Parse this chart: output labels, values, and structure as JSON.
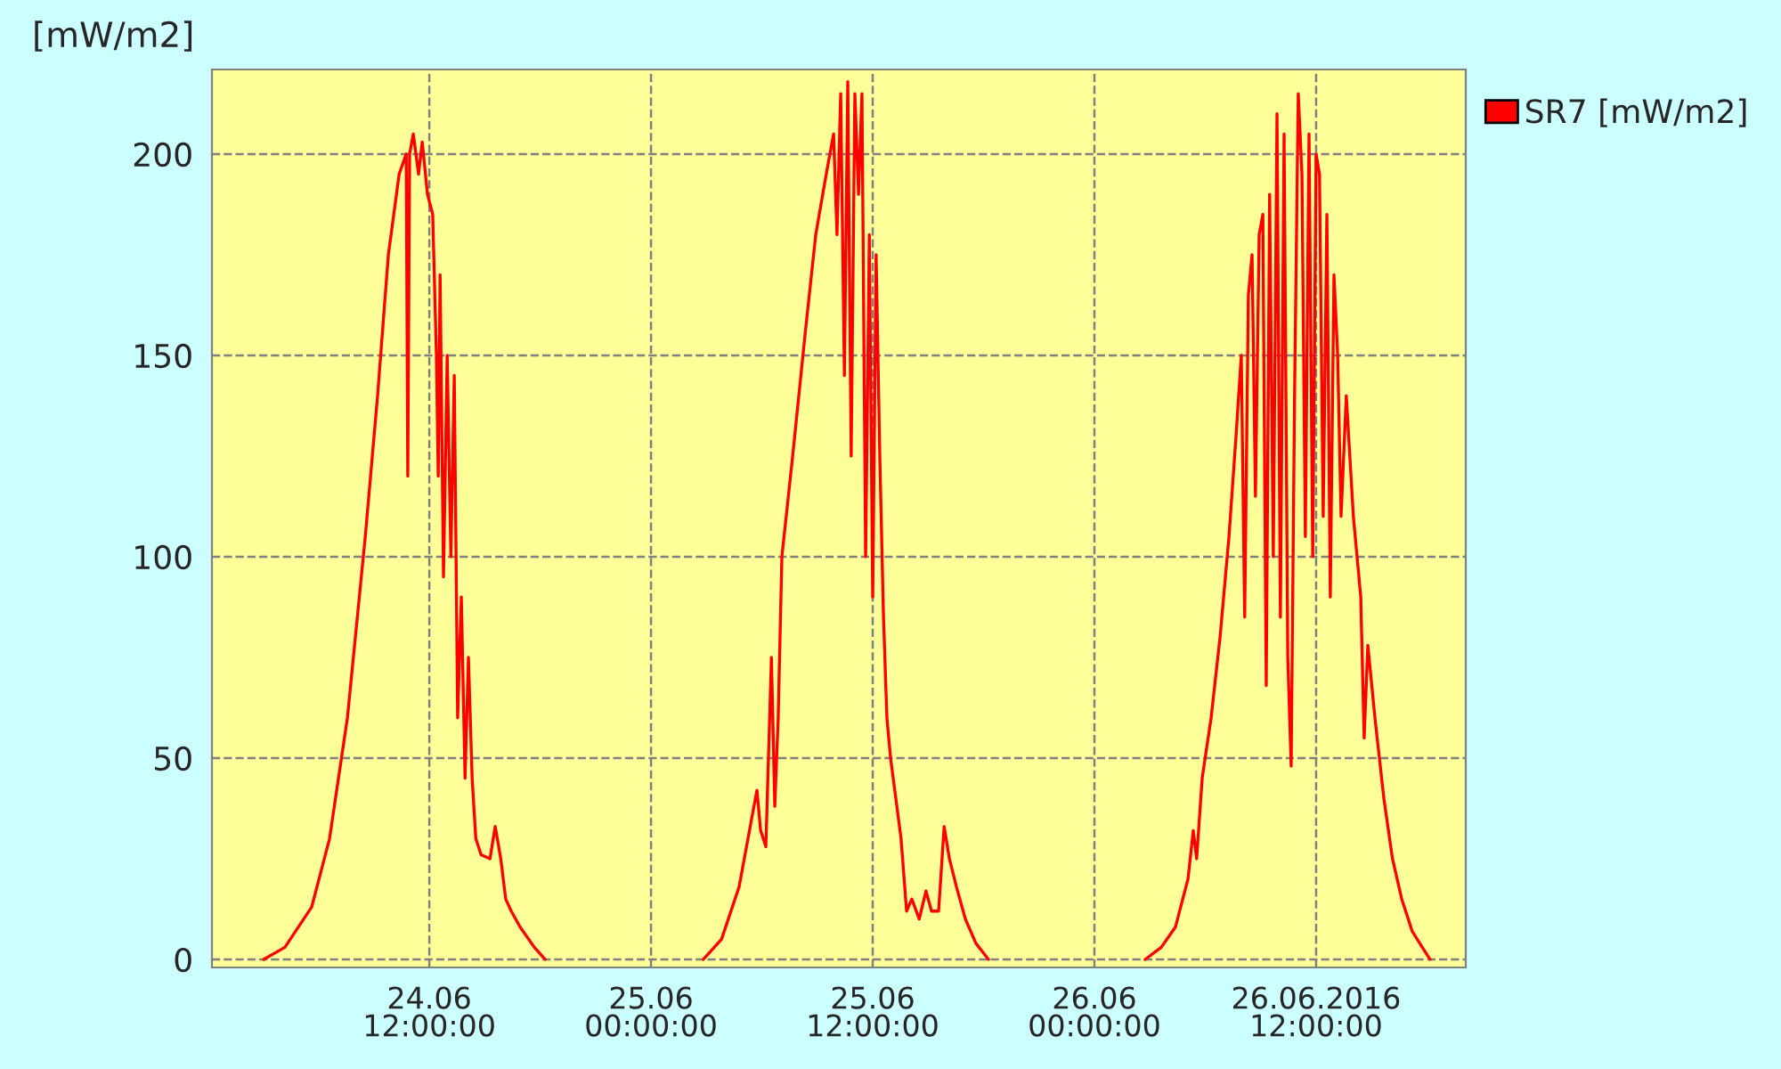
{
  "chart_data": {
    "type": "line",
    "ylabel": "[mW/m2]",
    "x": [
      "2016-06-24T03:02",
      "2016-06-24T04:11",
      "2016-06-24T05:38",
      "2016-06-24T06:36",
      "2016-06-24T07:34",
      "2016-06-24T08:32",
      "2016-06-24T09:12",
      "2016-06-24T09:47",
      "2016-06-24T10:22",
      "2016-06-24T10:45",
      "2016-06-24T10:50",
      "2016-06-24T10:56",
      "2016-06-24T11:08",
      "2016-06-24T11:25",
      "2016-06-24T11:37",
      "2016-06-24T11:54",
      "2016-06-24T12:11",
      "2016-06-24T12:23",
      "2016-06-24T12:29",
      "2016-06-24T12:35",
      "2016-06-24T12:46",
      "2016-06-24T12:58",
      "2016-06-24T13:10",
      "2016-06-24T13:21",
      "2016-06-24T13:32",
      "2016-06-24T13:44",
      "2016-06-24T13:56",
      "2016-06-24T14:07",
      "2016-06-24T14:19",
      "2016-06-24T14:31",
      "2016-06-24T14:48",
      "2016-06-24T15:17",
      "2016-06-24T15:34",
      "2016-06-24T15:52",
      "2016-06-24T16:08",
      "2016-06-24T16:26",
      "2016-06-24T16:55",
      "2016-06-24T17:41",
      "2016-06-24T18:16",
      "2016-06-24T22:30",
      "2016-06-25T02:50",
      "2016-06-25T03:49",
      "2016-06-25T04:46",
      "2016-06-25T05:27",
      "2016-06-25T05:44",
      "2016-06-25T05:56",
      "2016-06-25T06:13",
      "2016-06-25T06:31",
      "2016-06-25T06:42",
      "2016-06-25T06:53",
      "2016-06-25T07:05",
      "2016-06-25T07:40",
      "2016-06-25T08:20",
      "2016-06-25T08:55",
      "2016-06-25T09:29",
      "2016-06-25T09:53",
      "2016-06-25T10:04",
      "2016-06-25T10:16",
      "2016-06-25T10:28",
      "2016-06-25T10:39",
      "2016-06-25T10:50",
      "2016-06-25T11:02",
      "2016-06-25T11:14",
      "2016-06-25T11:25",
      "2016-06-25T11:37",
      "2016-06-25T11:49",
      "2016-06-25T12:00",
      "2016-06-25T12:11",
      "2016-06-25T12:23",
      "2016-06-25T12:35",
      "2016-06-25T12:46",
      "2016-06-25T12:58",
      "2016-06-25T13:15",
      "2016-06-25T13:32",
      "2016-06-25T13:50",
      "2016-06-25T14:07",
      "2016-06-25T14:31",
      "2016-06-25T14:53",
      "2016-06-25T15:11",
      "2016-06-25T15:34",
      "2016-06-25T15:52",
      "2016-06-25T16:09",
      "2016-06-25T16:32",
      "2016-06-25T17:01",
      "2016-06-25T17:35",
      "2016-06-25T18:16",
      "2016-06-25T22:30",
      "2016-06-26T02:45",
      "2016-06-26T03:37",
      "2016-06-26T04:23",
      "2016-06-26T05:04",
      "2016-06-26T05:21",
      "2016-06-26T05:32",
      "2016-06-26T05:50",
      "2016-06-26T06:19",
      "2016-06-26T06:48",
      "2016-06-26T07:17",
      "2016-06-26T07:40",
      "2016-06-26T07:57",
      "2016-06-26T08:08",
      "2016-06-26T08:20",
      "2016-06-26T08:32",
      "2016-06-26T08:43",
      "2016-06-26T08:55",
      "2016-06-26T09:07",
      "2016-06-26T09:18",
      "2016-06-26T09:29",
      "2016-06-26T09:41",
      "2016-06-26T09:53",
      "2016-06-26T10:04",
      "2016-06-26T10:16",
      "2016-06-26T10:28",
      "2016-06-26T10:39",
      "2016-06-26T10:50",
      "2016-06-26T11:02",
      "2016-06-26T11:14",
      "2016-06-26T11:25",
      "2016-06-26T11:37",
      "2016-06-26T11:49",
      "2016-06-26T12:00",
      "2016-06-26T12:11",
      "2016-06-26T12:23",
      "2016-06-26T12:35",
      "2016-06-26T12:46",
      "2016-06-26T12:58",
      "2016-06-26T13:10",
      "2016-06-26T13:21",
      "2016-06-26T13:38",
      "2016-06-26T14:01",
      "2016-06-26T14:25",
      "2016-06-26T14:36",
      "2016-06-26T14:48",
      "2016-06-26T15:11",
      "2016-06-26T15:40",
      "2016-06-26T16:08",
      "2016-06-26T16:38",
      "2016-06-26T17:12",
      "2016-06-26T17:53",
      "2016-06-26T18:10"
    ],
    "series": [
      {
        "name": "SR7 [mW/m2]",
        "color": "#ff0000",
        "values": [
          0,
          3,
          13,
          30,
          60,
          105,
          140,
          175,
          195,
          200,
          120,
          200,
          205,
          195,
          203,
          190,
          185,
          150,
          120,
          170,
          95,
          150,
          100,
          145,
          60,
          90,
          45,
          75,
          45,
          30,
          26,
          25,
          33,
          25,
          15,
          12,
          8,
          3,
          0,
          null,
          0,
          5,
          18,
          35,
          42,
          32,
          28,
          75,
          38,
          60,
          100,
          125,
          155,
          180,
          195,
          205,
          180,
          215,
          145,
          218,
          125,
          215,
          190,
          215,
          100,
          180,
          90,
          175,
          125,
          85,
          60,
          50,
          40,
          30,
          12,
          15,
          10,
          17,
          12,
          12,
          33,
          25,
          18,
          10,
          4,
          0,
          null,
          0,
          3,
          8,
          20,
          32,
          25,
          45,
          60,
          80,
          105,
          130,
          150,
          85,
          165,
          175,
          115,
          180,
          185,
          68,
          190,
          100,
          210,
          85,
          205,
          75,
          48,
          140,
          215,
          195,
          105,
          205,
          100,
          200,
          195,
          110,
          185,
          90,
          170,
          150,
          110,
          140,
          110,
          90,
          55,
          78,
          60,
          40,
          25,
          15,
          7,
          2,
          0
        ]
      }
    ],
    "xlim": [
      "2016-06-24T00:14",
      "2016-06-26T20:06"
    ],
    "ylim": [
      -2,
      221
    ],
    "xticks": [
      {
        "value": "2016-06-24T12:00",
        "label": "24.06\n12:00:00"
      },
      {
        "value": "2016-06-25T00:00",
        "label": "25.06\n00:00:00"
      },
      {
        "value": "2016-06-25T12:00",
        "label": "25.06\n12:00:00"
      },
      {
        "value": "2016-06-26T00:00",
        "label": "26.06\n00:00:00"
      },
      {
        "value": "2016-06-26T12:00",
        "label": "26.06.2016\n12:00:00"
      }
    ],
    "yticks": [
      0,
      50,
      100,
      150,
      200
    ],
    "grid": true,
    "legend": "top right",
    "marker": "none",
    "line_style": "solid"
  }
}
